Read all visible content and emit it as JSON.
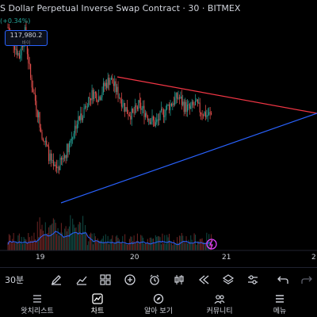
{
  "header": {
    "title": "S Dollar Perpetual Inverse Swap Contract · 30 · BITMEX",
    "change": "(+0.34%)",
    "price_badge_value": "117,980.2",
    "price_badge_sub": "바이"
  },
  "chart_data": {
    "type": "candlestick",
    "x_tick_labels": [
      "19",
      "20",
      "21",
      "2"
    ],
    "pattern": "symmetrical triangle",
    "upper_trendline_color": "#f23645",
    "lower_trendline_color": "#2962ff",
    "up_color": "#26a69a",
    "down_color": "#ef5350",
    "volume_ma_color": "#2962ff",
    "candles_close_trend": [
      0.98,
      0.9,
      0.82,
      0.95,
      0.7,
      0.55,
      0.4,
      0.3,
      0.2,
      0.22,
      0.28,
      0.36,
      0.45,
      0.5,
      0.58,
      0.62,
      0.6,
      0.66,
      0.7,
      0.64,
      0.58,
      0.52,
      0.5,
      0.55,
      0.52,
      0.48,
      0.45,
      0.5,
      0.54,
      0.57,
      0.6,
      0.55,
      0.53,
      0.56,
      0.52,
      0.5
    ]
  },
  "toolbar": {
    "timeframe": "30분",
    "tools": [
      "pen-icon",
      "chart-type-icon",
      "indicators-icon",
      "add-icon",
      "alert-icon",
      "replay-icon",
      "candle-icon",
      "rewind-icon",
      "layers-icon",
      "settings-icon",
      "undo-icon",
      "redo-icon"
    ]
  },
  "nav": {
    "items": [
      {
        "label": "왓치리스트",
        "icon": "watchlist-icon"
      },
      {
        "label": "차트",
        "icon": "chart-icon"
      },
      {
        "label": "알아 보기",
        "icon": "explore-icon"
      },
      {
        "label": "커뮤니티",
        "icon": "community-icon"
      },
      {
        "label": "메뉴",
        "icon": "menu-icon"
      }
    ]
  }
}
